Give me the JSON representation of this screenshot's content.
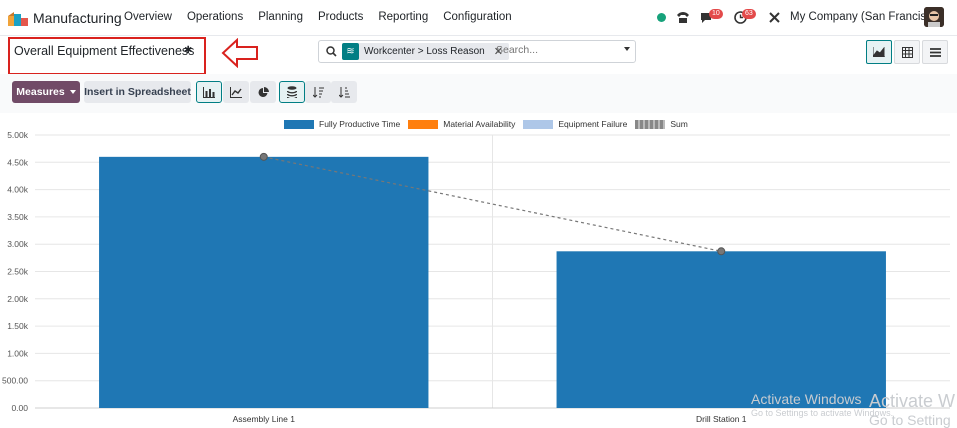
{
  "app": {
    "name": "Manufacturing"
  },
  "menu": [
    "Overview",
    "Operations",
    "Planning",
    "Products",
    "Reporting",
    "Configuration"
  ],
  "systray": {
    "messages_count": "10",
    "activities_count": "63",
    "company": "My Company (San Francisco)"
  },
  "page": {
    "title": "Overall Equipment Effectiveness"
  },
  "search": {
    "facet_label": "Workcenter > Loss Reason",
    "placeholder": "Search..."
  },
  "toolbar": {
    "measures_label": "Measures",
    "spreadsheet_label": "Insert in Spreadsheet"
  },
  "colors": {
    "brand": "#714b67",
    "accent": "#017e84",
    "annotation": "#d9221e"
  },
  "icons": {
    "view_switch": [
      "graph-view-icon",
      "pivot-view-icon",
      "list-view-icon"
    ],
    "chart_toolbar": [
      "bar-chart-icon",
      "line-chart-icon",
      "pie-chart-icon",
      "stacked-icon",
      "sort-descending-icon",
      "sort-ascending-icon"
    ]
  },
  "chart_data": {
    "type": "bar",
    "categories": [
      "Assembly Line 1",
      "Drill Station 1"
    ],
    "series": [
      {
        "name": "Fully Productive Time",
        "values": [
          4600,
          2870
        ],
        "color": "#1f77b4"
      },
      {
        "name": "Material Availability",
        "values": [
          0,
          0
        ],
        "color": "#ff7f0e"
      },
      {
        "name": "Equipment Failure",
        "values": [
          0,
          0
        ],
        "color": "#aec7e8"
      }
    ],
    "sum_line": {
      "name": "Sum",
      "values": [
        4600,
        2870
      ],
      "color": "#888888",
      "style": "dashed"
    },
    "y_ticks": [
      "0.00",
      "500.00",
      "1.00k",
      "1.50k",
      "2.00k",
      "2.50k",
      "3.00k",
      "3.50k",
      "4.00k",
      "4.50k",
      "5.00k"
    ],
    "ylim": [
      0,
      5000
    ],
    "grid": true,
    "legend_position": "top"
  },
  "watermark": {
    "line1": "Activate Windows",
    "line2": "Go to Settings to activate Windows.",
    "line1b": "Activate W",
    "line2b": "Go to Setting"
  }
}
